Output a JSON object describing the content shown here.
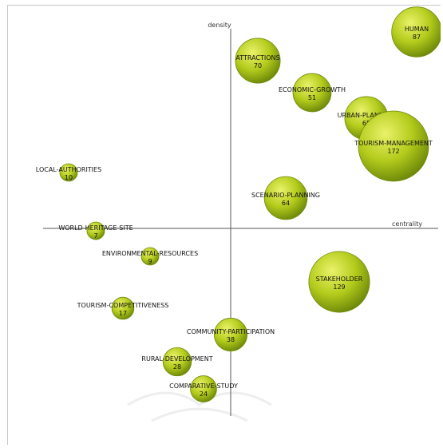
{
  "chart_data": {
    "type": "scatter",
    "title": "",
    "xlabel": "centrality",
    "ylabel": "density",
    "xlim": [
      -235,
      265
    ],
    "ylim": [
      -235,
      285
    ],
    "grid": false,
    "legend": "none",
    "colors": {
      "bubble_light": "#eaf26a",
      "bubble_mid": "#b4cc1c",
      "bubble_dark": "#6f8a0a",
      "axis": "#555555"
    },
    "points": [
      {
        "label": "HUMAN",
        "count": "87",
        "x": 233,
        "y": 246
      },
      {
        "label": "ATTRACTIONS",
        "count": "70",
        "x": 34,
        "y": 210
      },
      {
        "label": "ECONOMIC-GROWTH",
        "count": "51",
        "x": 102,
        "y": 170
      },
      {
        "label": "URBAN-PLANNING",
        "count": "65",
        "x": 170,
        "y": 138
      },
      {
        "label": "TOURISM-MANAGEMENT",
        "count": "172",
        "x": 204,
        "y": 103
      },
      {
        "label": "LOCAL-AUTHORITIES",
        "count": "10",
        "x": -203,
        "y": 70
      },
      {
        "label": "SCENARIO-PLANNING",
        "count": "64",
        "x": 69,
        "y": 38
      },
      {
        "label": "WORLD-HERITAGE-SITE",
        "count": "7",
        "x": -169,
        "y": -3
      },
      {
        "label": "ENVIRONMENTAL-RESOURCES",
        "count": "9",
        "x": -101,
        "y": -35
      },
      {
        "label": "STAKEHOLDER",
        "count": "129",
        "x": 136,
        "y": -67
      },
      {
        "label": "TOURISM-COMPETITIVENESS",
        "count": "17",
        "x": -135,
        "y": -100
      },
      {
        "label": "COMMUNITY-PARTICIPATION",
        "count": "38",
        "x": 0,
        "y": -133
      },
      {
        "label": "RURAL-DEVELOPMENT",
        "count": "28",
        "x": -67,
        "y": -167
      },
      {
        "label": "COMPARATIVE-STUDY",
        "count": "24",
        "x": -34,
        "y": -201
      }
    ]
  }
}
